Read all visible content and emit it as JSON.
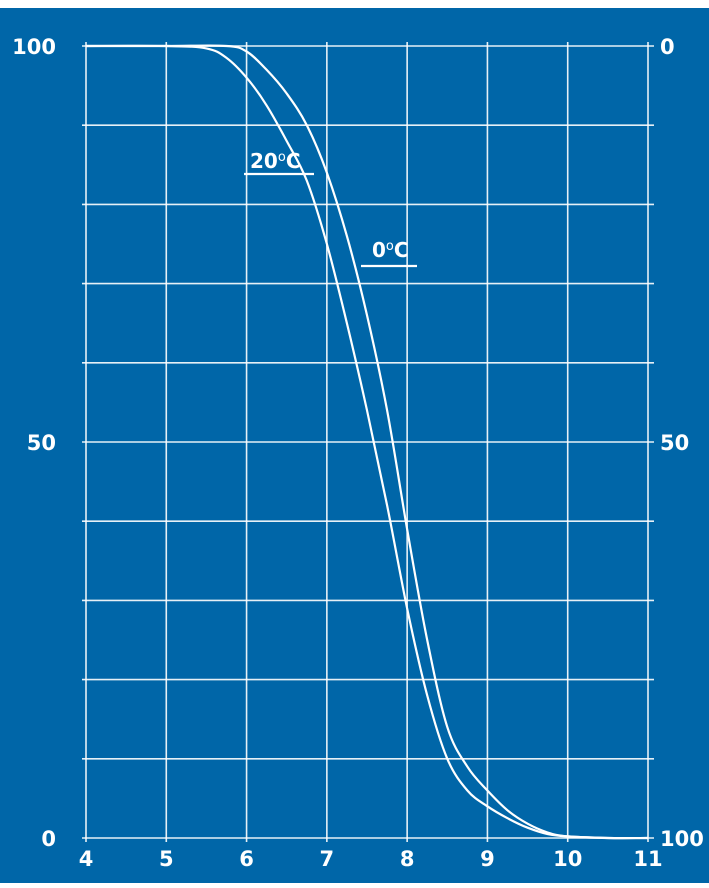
{
  "colors": {
    "background": "#ffffff",
    "panel": "#0066a8",
    "ink": "#ffffff"
  },
  "chart_data": {
    "type": "line",
    "title": "",
    "xlabel": "",
    "ylabel": "",
    "xlim": [
      4,
      11
    ],
    "ylim": [
      0,
      100
    ],
    "y2lim": [
      100,
      0
    ],
    "grid": true,
    "x_ticks": [
      4,
      5,
      6,
      7,
      8,
      9,
      10,
      11
    ],
    "x_tick_labels": [
      "4",
      "5",
      "6",
      "7",
      "8",
      "9",
      "10",
      "11"
    ],
    "y_left_ticks": [
      0,
      50,
      100
    ],
    "y_left_tick_labels": [
      "0",
      "50",
      "100"
    ],
    "y_right_ticks": [
      0,
      50,
      100
    ],
    "y_right_tick_labels": [
      "100",
      "50",
      "0"
    ],
    "minor_y_grid_step": 10,
    "series": [
      {
        "name": "20°C",
        "label_main": "20",
        "label_sup": "o",
        "label_unit": "C",
        "x": [
          4.0,
          5.0,
          5.5,
          5.75,
          6.0,
          6.25,
          6.5,
          6.75,
          7.0,
          7.25,
          7.5,
          7.75,
          8.0,
          8.25,
          8.5,
          8.75,
          9.0,
          9.25,
          9.5,
          9.75,
          10.0,
          10.5,
          11.0
        ],
        "y": [
          100,
          100,
          99.7,
          98.5,
          96,
          92.5,
          88,
          83,
          75,
          65,
          54,
          42,
          29,
          18,
          10,
          6,
          4,
          2.5,
          1.3,
          0.5,
          0.2,
          0,
          0
        ]
      },
      {
        "name": "0°C",
        "label_main": "0",
        "label_sup": "o",
        "label_unit": "C",
        "x": [
          4.0,
          5.0,
          5.75,
          6.0,
          6.25,
          6.5,
          6.75,
          7.0,
          7.25,
          7.5,
          7.75,
          8.0,
          8.25,
          8.5,
          8.75,
          9.0,
          9.25,
          9.5,
          9.75,
          10.0,
          10.5,
          11.0
        ],
        "y": [
          100,
          100,
          100,
          99.3,
          97,
          94,
          90,
          84,
          76,
          66,
          54,
          39,
          25,
          14,
          9,
          6,
          3.5,
          1.8,
          0.7,
          0.2,
          0,
          0
        ]
      }
    ]
  }
}
